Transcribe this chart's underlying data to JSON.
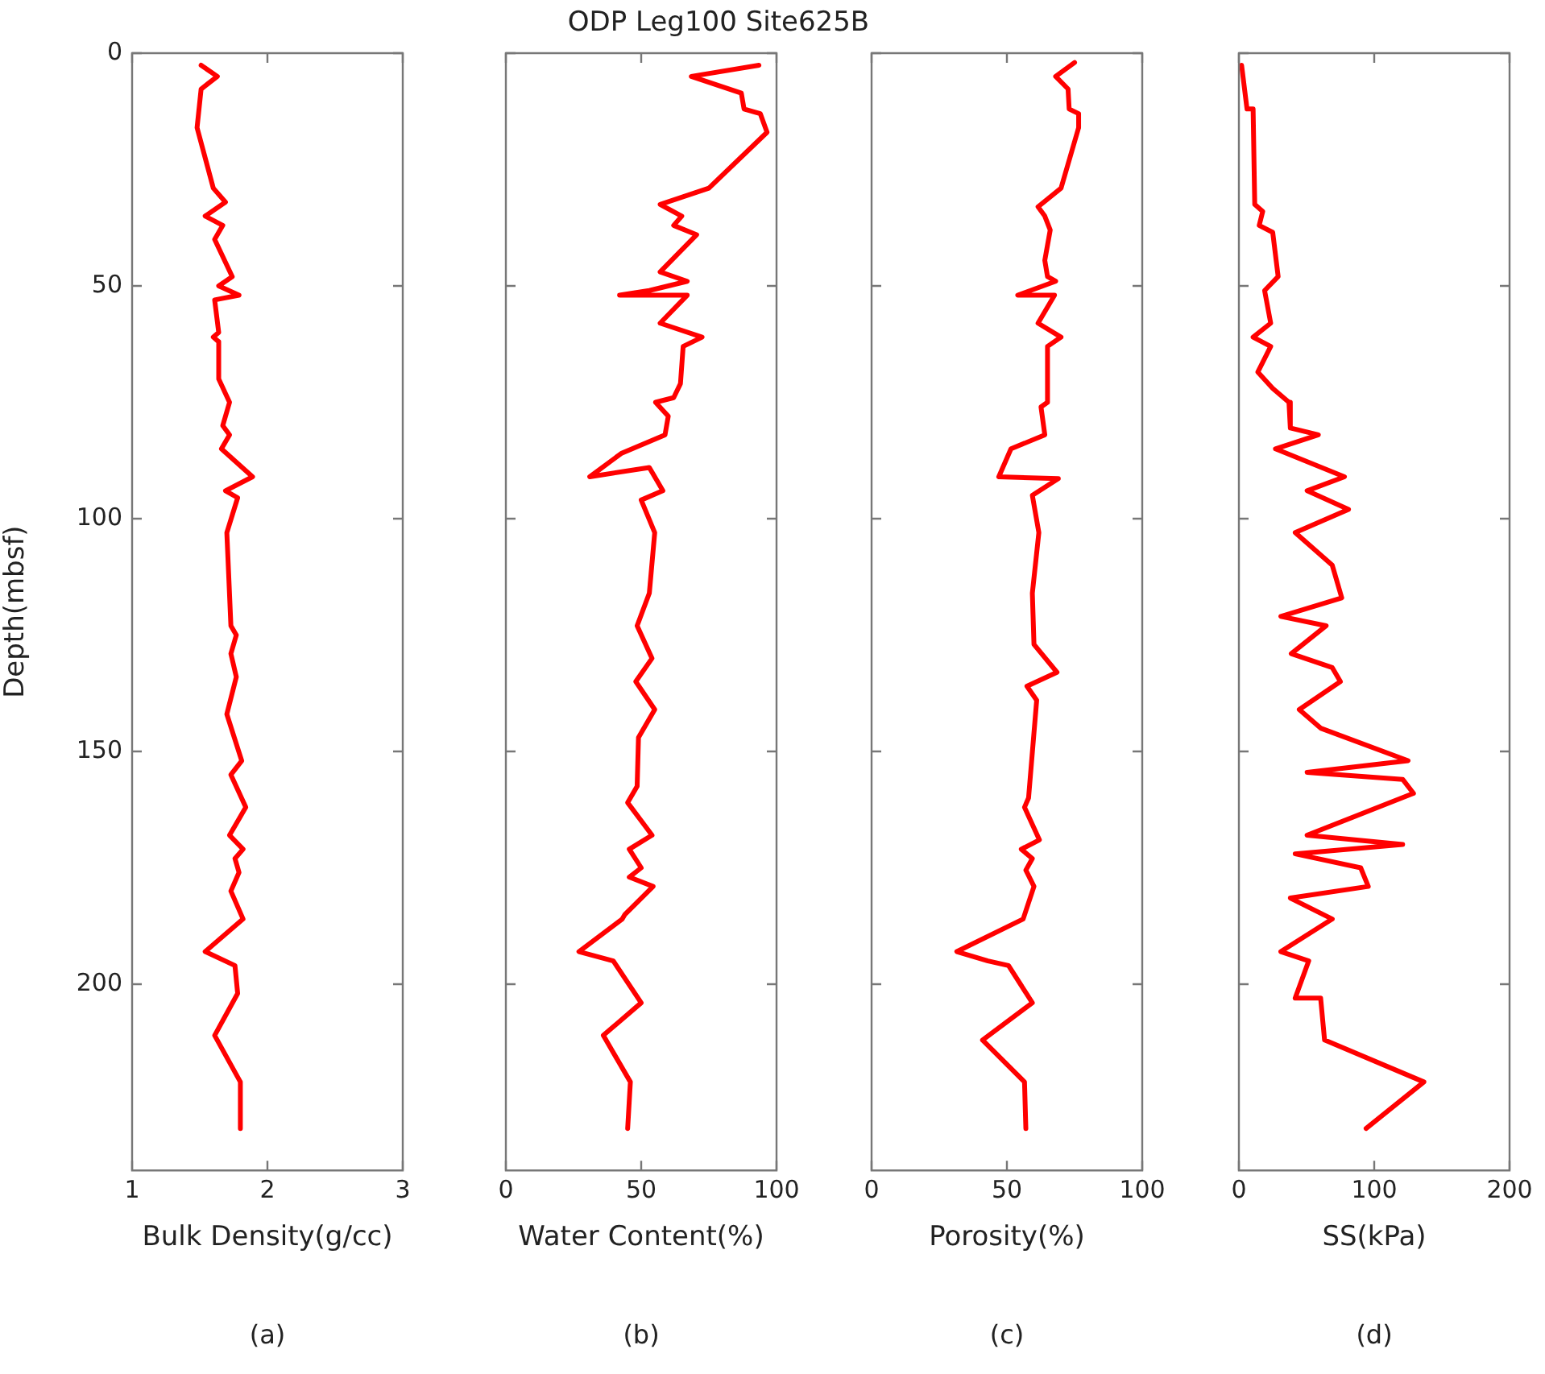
{
  "chart_data": [
    {
      "type": "line",
      "xlabel": "Bulk Density(g/cc)",
      "ylabel": "Depth(mbsf)",
      "annotations": [
        "(a)"
      ],
      "xlim": [
        1,
        3
      ],
      "xticks": [
        1,
        2,
        3
      ],
      "ylim": [
        240,
        0
      ],
      "yticks": [
        0,
        50,
        100,
        150,
        200
      ],
      "series": [
        {
          "color": "#ff0000",
          "x": [
            1.51,
            1.63,
            1.51,
            1.48,
            1.6,
            1.69,
            1.54,
            1.67,
            1.61,
            1.74,
            1.64,
            1.79,
            1.61,
            1.64,
            1.6,
            1.64,
            1.64,
            1.72,
            1.67,
            1.72,
            1.66,
            1.89,
            1.69,
            1.78,
            1.7,
            1.73,
            1.77,
            1.73,
            1.77,
            1.7,
            1.81,
            1.73,
            1.84,
            1.72,
            1.82,
            1.76,
            1.79,
            1.73,
            1.82,
            1.54,
            1.76,
            1.78,
            1.61,
            1.8,
            1.8
          ],
          "values": [
            2.6,
            5,
            7.7,
            16,
            29,
            32,
            35,
            37,
            40,
            48,
            50,
            52,
            53,
            60,
            61,
            62,
            70,
            75,
            80,
            82,
            85,
            91,
            94,
            95.5,
            103,
            123,
            125,
            129,
            134,
            142,
            152,
            155,
            162,
            168,
            171,
            173,
            176,
            180,
            186,
            193,
            196,
            202,
            211,
            221,
            231
          ]
        }
      ]
    },
    {
      "type": "line",
      "title": "ODP Leg100 Site625B",
      "xlabel": "Water Content(%)",
      "annotations": [
        "(b)"
      ],
      "xlim": [
        0,
        100
      ],
      "xticks": [
        0,
        50,
        100
      ],
      "ylim": [
        240,
        0
      ],
      "yticks": [
        0,
        50,
        100,
        150,
        200
      ],
      "tick_labels": "x",
      "series": [
        {
          "color": "#ff0000",
          "x": [
            93.5,
            68.5,
            87,
            88,
            94,
            96.5,
            75,
            57,
            65,
            62,
            70.5,
            57,
            67,
            53,
            42,
            67,
            57,
            72.5,
            65.5,
            64.5,
            62,
            55.3,
            60,
            58.8,
            42.6,
            31,
            53,
            58,
            50,
            55,
            53,
            48.5,
            54,
            48,
            55,
            49,
            48.5,
            45,
            54,
            45.6,
            50,
            45.6,
            54.4,
            44,
            43,
            27,
            39.7,
            50,
            36,
            46,
            45
          ],
          "values": [
            2.6,
            5,
            8.6,
            12,
            13,
            17,
            29,
            32.5,
            35,
            37,
            39,
            47,
            49,
            51,
            52,
            52,
            58,
            61,
            63,
            71,
            74,
            75,
            78,
            82,
            86,
            91,
            89,
            94,
            96,
            103,
            116,
            123,
            130,
            135,
            141,
            147,
            157.5,
            161,
            168,
            171,
            175,
            177,
            179,
            185,
            186,
            193,
            195,
            204,
            211,
            221,
            231
          ]
        }
      ]
    },
    {
      "type": "line",
      "xlabel": "Porosity(%)",
      "annotations": [
        "(c)"
      ],
      "xlim": [
        0,
        100
      ],
      "xticks": [
        0,
        50,
        100
      ],
      "ylim": [
        240,
        0
      ],
      "yticks": [
        0,
        50,
        100,
        150,
        200
      ],
      "tick_labels": "x",
      "series": [
        {
          "color": "#ff0000",
          "x": [
            75,
            68,
            72.6,
            73,
            76.5,
            76.5,
            70,
            61.5,
            64,
            66,
            64,
            65,
            68,
            54,
            67.6,
            61.5,
            70,
            65,
            65,
            62.6,
            64,
            51.5,
            47,
            69,
            59.4,
            61.8,
            59.4,
            60,
            68.5,
            57.4,
            61,
            58,
            56.5,
            62,
            55.3,
            59.4,
            57,
            60,
            56,
            31.5,
            43,
            50.6,
            59.4,
            41,
            56.5,
            57
          ],
          "values": [
            2,
            5,
            7.7,
            12,
            13,
            16,
            29,
            33,
            35,
            38,
            44.5,
            48,
            49,
            52,
            52,
            58,
            61,
            63,
            75,
            76,
            82,
            85,
            91,
            91.4,
            95,
            103,
            116,
            127,
            133,
            136,
            139,
            160,
            162,
            169,
            171,
            173,
            175.5,
            179,
            186,
            193,
            195,
            196,
            204,
            212,
            221,
            231
          ]
        }
      ]
    },
    {
      "type": "line",
      "xlabel": "SS(kPa)",
      "annotations": [
        "(d)"
      ],
      "xlim": [
        0,
        200
      ],
      "xticks": [
        0,
        100,
        200
      ],
      "ylim": [
        240,
        0
      ],
      "yticks": [
        0,
        50,
        100,
        150,
        200
      ],
      "tick_labels": "x",
      "series": [
        {
          "color": "#ff0000",
          "x": [
            2,
            6,
            10.5,
            11.7,
            17.6,
            15,
            25,
            29,
            19,
            23.5,
            10.5,
            23.5,
            14,
            25,
            37,
            38,
            58.7,
            27,
            78,
            50.4,
            81,
            41.6,
            69,
            76,
            31,
            64.5,
            38.7,
            69,
            75,
            44.6,
            60.4,
            125,
            50.4,
            121,
            129,
            50.4,
            121,
            41.6,
            90,
            95.6,
            38,
            69,
            31,
            51.6,
            41.6,
            60.4,
            63.3,
            136.7,
            94
          ],
          "values": [
            2.6,
            12,
            12,
            32.5,
            34,
            37,
            38.5,
            48,
            51,
            58,
            61,
            63,
            68.5,
            72,
            75,
            80.5,
            82,
            85,
            91,
            94,
            98,
            103,
            110,
            117,
            121,
            123,
            129,
            132,
            135,
            141,
            145,
            152,
            154.5,
            156,
            159,
            168,
            170,
            172,
            175,
            179,
            181.5,
            186,
            193,
            195,
            203,
            203,
            212,
            221,
            231
          ]
        }
      ]
    }
  ]
}
